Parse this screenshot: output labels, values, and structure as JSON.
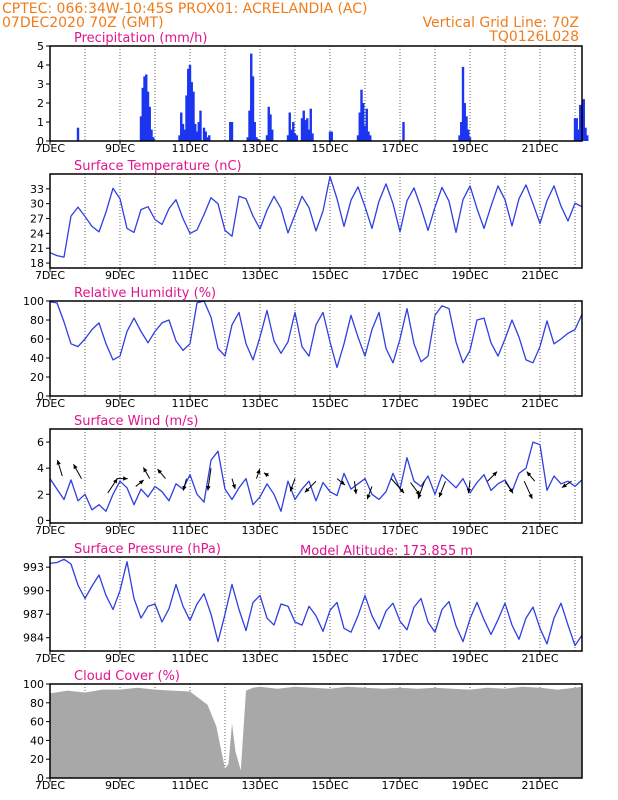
{
  "header": {
    "line1": "CPTEC:   066:34W-10:45S   PROX01: ACRELANDIA (AC)",
    "line2": "07DEC2020 70Z (GMT)",
    "grid_note": "Vertical Grid Line: 70Z",
    "code": "TQ0126L028",
    "model_altitude": "Model Altitude: 173.855  m"
  },
  "colors": {
    "header": "#f07c1b",
    "title": "#e0158f",
    "line": "#2f3fe0",
    "bar": "#1c35f0",
    "cloud": "#a8a8a8",
    "arrow": "#000000"
  },
  "chart_data": [
    {
      "type": "bar",
      "title": "Precipitation (mm/h)",
      "xlim": [
        0,
        15.2
      ],
      "x_ticks": [
        "7DEC",
        "9DEC",
        "11DEC",
        "13DEC",
        "15DEC",
        "17DEC",
        "19DEC",
        "21DEC"
      ],
      "ylim": [
        0,
        5
      ],
      "y_ticks": [
        "0",
        "1",
        "2",
        "3",
        "4",
        "5"
      ],
      "x": [
        0.8,
        2.6,
        2.65,
        2.7,
        2.75,
        2.8,
        2.85,
        2.9,
        2.95,
        3.7,
        3.75,
        3.8,
        3.85,
        3.9,
        3.95,
        4.0,
        4.05,
        4.1,
        4.15,
        4.2,
        4.25,
        4.3,
        4.4,
        4.45,
        4.5,
        4.55,
        5.15,
        5.2,
        5.65,
        5.7,
        5.75,
        5.8,
        5.85,
        5.9,
        5.95,
        6.2,
        6.25,
        6.3,
        6.35,
        6.8,
        6.85,
        6.9,
        6.95,
        7.0,
        7.05,
        7.2,
        7.25,
        7.3,
        7.35,
        7.4,
        7.45,
        7.5,
        8.0,
        8.05,
        8.8,
        8.85,
        8.9,
        8.95,
        9.0,
        9.05,
        9.1,
        9.15,
        10.1,
        11.7,
        11.75,
        11.8,
        11.85,
        11.9,
        11.95,
        12.0,
        15.0,
        15.05,
        15.1,
        15.15,
        15.2,
        15.25,
        15.3,
        15.35
      ],
      "values": [
        0.7,
        1.3,
        2.8,
        3.4,
        3.5,
        2.6,
        1.8,
        0.6,
        0.2,
        0.3,
        1.5,
        0.9,
        0.6,
        2.4,
        3.8,
        4.0,
        3.1,
        2.6,
        0.9,
        0.5,
        1.0,
        1.6,
        0.7,
        0.5,
        0.2,
        0.3,
        1.0,
        1.0,
        0.2,
        1.6,
        4.6,
        3.4,
        1.0,
        0.2,
        0.1,
        0.3,
        1.8,
        1.4,
        0.6,
        0.3,
        1.5,
        0.6,
        1.0,
        0.4,
        0.3,
        1.2,
        1.6,
        1.1,
        1.2,
        0.6,
        1.7,
        0.4,
        0.5,
        0.5,
        0.3,
        1.5,
        2.7,
        2.0,
        0.8,
        1.7,
        0.5,
        0.3,
        1.0,
        0.3,
        1.0,
        3.9,
        2.0,
        1.3,
        0.6,
        0.2,
        1.2,
        1.2,
        0.6,
        1.9,
        1.5,
        2.2,
        0.7,
        0.3
      ]
    },
    {
      "type": "line",
      "title": "Surface Temperature (nC)",
      "xlim": [
        0,
        15.2
      ],
      "x_ticks": [
        "7DEC",
        "9DEC",
        "11DEC",
        "13DEC",
        "15DEC",
        "17DEC",
        "19DEC",
        "21DEC"
      ],
      "ylim": [
        17,
        36
      ],
      "y_ticks": [
        "18",
        "21",
        "24",
        "27",
        "30",
        "33"
      ],
      "x": [
        0,
        0.2,
        0.4,
        0.6,
        0.8,
        1.0,
        1.2,
        1.4,
        1.6,
        1.8,
        2.0,
        2.2,
        2.4,
        2.6,
        2.8,
        3.0,
        3.2,
        3.4,
        3.6,
        3.8,
        4.0,
        4.2,
        4.4,
        4.6,
        4.8,
        5.0,
        5.2,
        5.4,
        5.6,
        5.8,
        6.0,
        6.2,
        6.4,
        6.6,
        6.8,
        7.0,
        7.2,
        7.4,
        7.6,
        7.8,
        8.0,
        8.2,
        8.4,
        8.6,
        8.8,
        9.0,
        9.2,
        9.4,
        9.6,
        9.8,
        10.0,
        10.2,
        10.4,
        10.6,
        10.8,
        11.0,
        11.2,
        11.4,
        11.6,
        11.8,
        12.0,
        12.2,
        12.4,
        12.6,
        12.8,
        13.0,
        13.2,
        13.4,
        13.6,
        13.8,
        14.0,
        14.2,
        14.4,
        14.6,
        14.8,
        15.0,
        15.2
      ],
      "values": [
        20.1,
        19.5,
        19.2,
        27.5,
        29.3,
        27.4,
        25.4,
        24.3,
        28.3,
        33.1,
        31.0,
        25.0,
        24.2,
        28.8,
        29.4,
        26.8,
        25.8,
        29.0,
        30.8,
        27.0,
        24.0,
        24.7,
        27.8,
        31.2,
        30.0,
        24.6,
        23.4,
        31.5,
        31.0,
        27.5,
        24.9,
        28.7,
        31.5,
        29.0,
        24.1,
        27.8,
        31.5,
        29.2,
        24.5,
        28.5,
        35.5,
        31.0,
        25.4,
        30.7,
        33.4,
        29.4,
        25.0,
        30.5,
        34.0,
        30.0,
        24.3,
        30.6,
        33.2,
        29.2,
        24.6,
        29.3,
        33.3,
        30.5,
        24.2,
        30.8,
        33.6,
        29.0,
        25.0,
        29.5,
        33.6,
        30.8,
        25.5,
        31.0,
        33.8,
        30.0,
        26.0,
        30.6,
        33.6,
        29.5,
        26.5,
        30.1,
        29.4
      ]
    },
    {
      "type": "line",
      "title": "Relative Humidity (%)",
      "xlim": [
        0,
        15.2
      ],
      "x_ticks": [
        "7DEC",
        "9DEC",
        "11DEC",
        "13DEC",
        "15DEC",
        "17DEC",
        "19DEC",
        "21DEC"
      ],
      "ylim": [
        0,
        100
      ],
      "y_ticks": [
        "0",
        "20",
        "40",
        "60",
        "80",
        "100"
      ],
      "x": [
        0,
        0.2,
        0.4,
        0.6,
        0.8,
        1.0,
        1.2,
        1.4,
        1.6,
        1.8,
        2.0,
        2.2,
        2.4,
        2.6,
        2.8,
        3.0,
        3.2,
        3.4,
        3.6,
        3.8,
        4.0,
        4.2,
        4.4,
        4.6,
        4.8,
        5.0,
        5.2,
        5.4,
        5.6,
        5.8,
        6.0,
        6.2,
        6.4,
        6.6,
        6.8,
        7.0,
        7.2,
        7.4,
        7.6,
        7.8,
        8.0,
        8.2,
        8.4,
        8.6,
        8.8,
        9.0,
        9.2,
        9.4,
        9.6,
        9.8,
        10.0,
        10.2,
        10.4,
        10.6,
        10.8,
        11.0,
        11.2,
        11.4,
        11.6,
        11.8,
        12.0,
        12.2,
        12.4,
        12.6,
        12.8,
        13.0,
        13.2,
        13.4,
        13.6,
        13.8,
        14.0,
        14.2,
        14.4,
        14.6,
        14.8,
        15.0,
        15.2
      ],
      "values": [
        99,
        98,
        78,
        55,
        52,
        60,
        70,
        77,
        55,
        38,
        42,
        68,
        82,
        68,
        56,
        68,
        77,
        80,
        58,
        48,
        55,
        98,
        100,
        83,
        50,
        42,
        75,
        88,
        55,
        38,
        62,
        90,
        58,
        45,
        57,
        88,
        52,
        42,
        75,
        88,
        57,
        30,
        55,
        85,
        62,
        42,
        70,
        88,
        50,
        35,
        60,
        92,
        55,
        36,
        42,
        85,
        95,
        92,
        57,
        35,
        48,
        80,
        82,
        56,
        42,
        60,
        80,
        62,
        38,
        35,
        52,
        79,
        55,
        60,
        66,
        70,
        86
      ]
    },
    {
      "type": "line",
      "title": "Surface Wind (m/s)",
      "xlim": [
        0,
        15.2
      ],
      "x_ticks": [
        "7DEC",
        "9DEC",
        "11DEC",
        "13DEC",
        "15DEC",
        "17DEC",
        "19DEC",
        "21DEC"
      ],
      "ylim": [
        -0.2,
        7
      ],
      "y_ticks": [
        "0",
        "2",
        "4",
        "6"
      ],
      "x": [
        0,
        0.2,
        0.4,
        0.6,
        0.8,
        1.0,
        1.2,
        1.4,
        1.6,
        1.8,
        2.0,
        2.2,
        2.4,
        2.6,
        2.8,
        3.0,
        3.2,
        3.4,
        3.6,
        3.8,
        4.0,
        4.2,
        4.4,
        4.6,
        4.8,
        5.0,
        5.2,
        5.4,
        5.6,
        5.8,
        6.0,
        6.2,
        6.4,
        6.6,
        6.8,
        7.0,
        7.2,
        7.4,
        7.6,
        7.8,
        8.0,
        8.2,
        8.4,
        8.6,
        8.8,
        9.0,
        9.2,
        9.4,
        9.6,
        9.8,
        10.0,
        10.2,
        10.4,
        10.6,
        10.8,
        11.0,
        11.2,
        11.4,
        11.6,
        11.8,
        12.0,
        12.2,
        12.4,
        12.6,
        12.8,
        13.0,
        13.2,
        13.4,
        13.6,
        13.8,
        14.0,
        14.2,
        14.4,
        14.6,
        14.8,
        15.0,
        15.2
      ],
      "values": [
        3.2,
        2.4,
        1.6,
        3.1,
        1.5,
        2.0,
        0.8,
        1.2,
        0.7,
        2.0,
        3.0,
        2.5,
        1.2,
        2.4,
        1.8,
        2.6,
        2.2,
        1.5,
        2.8,
        2.4,
        3.5,
        2.0,
        1.4,
        4.6,
        5.3,
        2.4,
        1.6,
        2.5,
        3.2,
        1.2,
        1.8,
        2.8,
        2.0,
        0.7,
        3.0,
        1.6,
        2.4,
        3.0,
        1.5,
        2.9,
        2.2,
        1.9,
        3.6,
        2.4,
        2.8,
        3.2,
        2.0,
        1.6,
        2.2,
        3.6,
        2.4,
        4.8,
        3.0,
        2.6,
        3.4,
        2.0,
        3.5,
        3.0,
        2.5,
        3.2,
        2.1,
        2.9,
        3.5,
        2.3,
        2.8,
        3.1,
        2.2,
        3.6,
        4.0,
        6.0,
        5.8,
        2.3,
        3.4,
        2.8,
        3.0,
        2.6,
        3.1
      ],
      "vectors": [
        {
          "x": 0.35,
          "y": 3.4,
          "u": -0.6,
          "v": 2.0
        },
        {
          "x": 0.9,
          "y": 3.2,
          "u": -1.0,
          "v": 1.8
        },
        {
          "x": 1.65,
          "y": 2.1,
          "u": 1.2,
          "v": 1.8
        },
        {
          "x": 1.9,
          "y": 3.2,
          "u": 1.4,
          "v": 0.0
        },
        {
          "x": 2.45,
          "y": 2.6,
          "u": 1.0,
          "v": 0.8
        },
        {
          "x": 2.85,
          "y": 3.2,
          "u": -0.8,
          "v": 1.4
        },
        {
          "x": 3.3,
          "y": 3.2,
          "u": -1.0,
          "v": 1.2
        },
        {
          "x": 3.9,
          "y": 3.2,
          "u": -0.4,
          "v": -1.5
        },
        {
          "x": 4.6,
          "y": 4.0,
          "u": -0.4,
          "v": -2.8
        },
        {
          "x": 5.2,
          "y": 3.2,
          "u": 0.4,
          "v": -1.3
        },
        {
          "x": 5.9,
          "y": 3.2,
          "u": 0.4,
          "v": 1.2
        },
        {
          "x": 6.25,
          "y": 3.4,
          "u": -0.6,
          "v": 0.4
        },
        {
          "x": 7.0,
          "y": 3.2,
          "u": -0.6,
          "v": -1.6
        },
        {
          "x": 7.6,
          "y": 3.0,
          "u": -1.4,
          "v": -1.4
        },
        {
          "x": 8.2,
          "y": 3.2,
          "u": 1.0,
          "v": -0.8
        },
        {
          "x": 8.7,
          "y": 3.0,
          "u": 0.2,
          "v": -1.6
        },
        {
          "x": 9.2,
          "y": 2.6,
          "u": -0.6,
          "v": -1.6
        },
        {
          "x": 9.75,
          "y": 3.2,
          "u": 1.6,
          "v": -1.8
        },
        {
          "x": 10.3,
          "y": 2.9,
          "u": 1.2,
          "v": -1.6
        },
        {
          "x": 10.7,
          "y": 3.0,
          "u": -0.8,
          "v": -2.2
        },
        {
          "x": 11.3,
          "y": 3.0,
          "u": -0.8,
          "v": -2.0
        },
        {
          "x": 12.0,
          "y": 3.0,
          "u": -0.2,
          "v": -1.5
        },
        {
          "x": 12.5,
          "y": 3.0,
          "u": 1.2,
          "v": 1.2
        },
        {
          "x": 13.0,
          "y": 3.0,
          "u": 1.0,
          "v": -1.5
        },
        {
          "x": 13.55,
          "y": 3.0,
          "u": 1.0,
          "v": -2.2
        },
        {
          "x": 13.85,
          "y": 3.0,
          "u": -1.0,
          "v": 1.2
        },
        {
          "x": 14.9,
          "y": 3.0,
          "u": -1.2,
          "v": -0.8
        }
      ]
    },
    {
      "type": "line",
      "title": "Surface Pressure (hPa)",
      "xlim": [
        0,
        15.2
      ],
      "x_ticks": [
        "7DEC",
        "9DEC",
        "11DEC",
        "13DEC",
        "15DEC",
        "17DEC",
        "19DEC",
        "21DEC"
      ],
      "ylim": [
        982.3,
        994.3
      ],
      "y_ticks": [
        "984",
        "987",
        "990",
        "993"
      ],
      "x": [
        0,
        0.2,
        0.4,
        0.6,
        0.8,
        1.0,
        1.2,
        1.4,
        1.6,
        1.8,
        2.0,
        2.2,
        2.4,
        2.6,
        2.8,
        3.0,
        3.2,
        3.4,
        3.6,
        3.8,
        4.0,
        4.2,
        4.4,
        4.6,
        4.8,
        5.0,
        5.2,
        5.4,
        5.6,
        5.8,
        6.0,
        6.2,
        6.4,
        6.6,
        6.8,
        7.0,
        7.2,
        7.4,
        7.6,
        7.8,
        8.0,
        8.2,
        8.4,
        8.6,
        8.8,
        9.0,
        9.2,
        9.4,
        9.6,
        9.8,
        10.0,
        10.2,
        10.4,
        10.6,
        10.8,
        11.0,
        11.2,
        11.4,
        11.6,
        11.8,
        12.0,
        12.2,
        12.4,
        12.6,
        12.8,
        13.0,
        13.2,
        13.4,
        13.6,
        13.8,
        14.0,
        14.2,
        14.4,
        14.6,
        14.8,
        15.0,
        15.2
      ],
      "values": [
        993.5,
        993.6,
        994.0,
        993.4,
        990.7,
        989.0,
        990.6,
        992.0,
        989.4,
        987.6,
        990.0,
        993.7,
        989.0,
        986.5,
        988.0,
        988.3,
        986.0,
        987.7,
        990.8,
        988.0,
        986.2,
        988.3,
        989.6,
        987.0,
        983.5,
        987.0,
        990.8,
        987.6,
        984.9,
        988.5,
        989.4,
        986.5,
        985.6,
        988.3,
        988.0,
        986.0,
        985.6,
        988.0,
        986.8,
        984.8,
        987.5,
        988.5,
        985.2,
        984.7,
        986.8,
        989.4,
        986.8,
        985.1,
        987.4,
        988.4,
        986.1,
        985.0,
        987.9,
        989.0,
        986.0,
        984.7,
        987.6,
        988.6,
        985.5,
        983.5,
        986.4,
        988.5,
        986.3,
        984.4,
        986.3,
        988.4,
        985.6,
        983.8,
        986.5,
        987.9,
        985.2,
        983.2,
        986.5,
        988.4,
        985.6,
        983.0,
        984.3
      ]
    },
    {
      "type": "area",
      "title": "Cloud Cover (%)",
      "xlim": [
        0,
        15.2
      ],
      "x_ticks": [
        "7DEC",
        "9DEC",
        "11DEC",
        "13DEC",
        "15DEC",
        "17DEC",
        "19DEC",
        "21DEC"
      ],
      "ylim": [
        0,
        100
      ],
      "y_ticks": [
        "0",
        "20",
        "40",
        "60",
        "80",
        "100"
      ],
      "x": [
        0,
        0.5,
        1.0,
        1.5,
        2.0,
        2.5,
        3.0,
        3.5,
        4.0,
        4.25,
        4.5,
        4.75,
        4.9,
        5.0,
        5.1,
        5.2,
        5.3,
        5.45,
        5.6,
        5.8,
        6.0,
        6.5,
        7.0,
        7.5,
        8.0,
        8.5,
        9.0,
        9.5,
        10.0,
        10.5,
        11.0,
        11.5,
        12.0,
        12.5,
        13.0,
        13.5,
        14.0,
        14.5,
        15.0,
        15.2
      ],
      "values": [
        90,
        93,
        91,
        94,
        94,
        96,
        94,
        93,
        92,
        85,
        78,
        55,
        28,
        10,
        15,
        58,
        28,
        8,
        93,
        96,
        97,
        95,
        97,
        96,
        95,
        97,
        96,
        95,
        96,
        95,
        96,
        95,
        94,
        96,
        95,
        97,
        96,
        94,
        96,
        97
      ]
    }
  ]
}
